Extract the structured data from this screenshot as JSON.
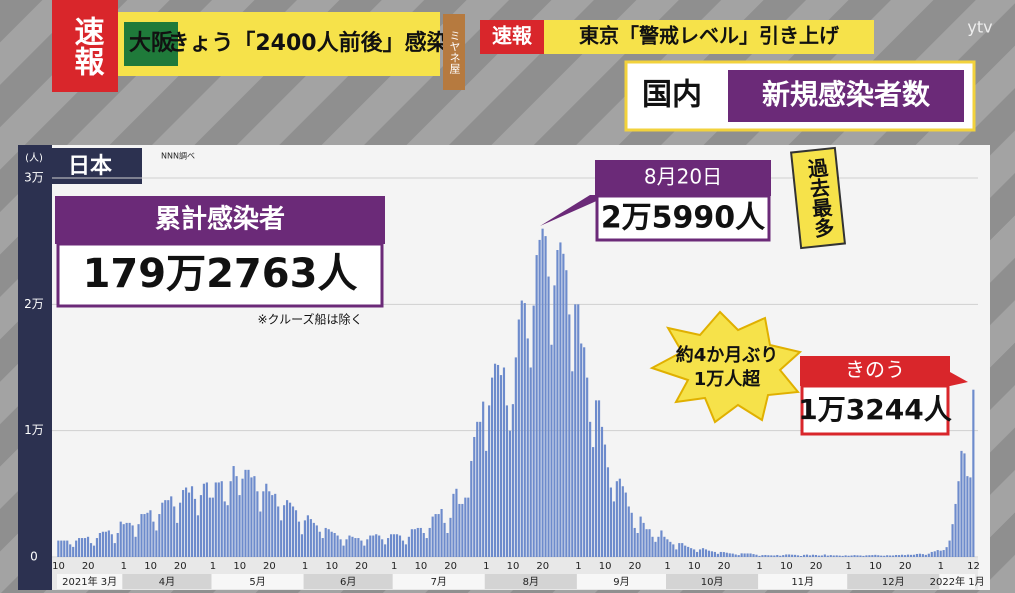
{
  "header": {
    "breaking": "速報",
    "ticker_tag": "大阪",
    "ticker_text": "きょう「2400人前後」感染",
    "program": "ミヤネ屋",
    "flash_tag": "速報",
    "flash_text": "東京「警戒レベル」引き上げ",
    "panel_region": "国内",
    "panel_title": "新規感染者数",
    "watermark": "ytv"
  },
  "chart_data": {
    "type": "bar",
    "region": "日本",
    "source": "NNN調べ",
    "unit": "(人)",
    "color": "#6d8bcc",
    "grid": true,
    "ylim": [
      0,
      30000
    ],
    "yticks": [
      0,
      {
        "value": 10000,
        "label": "1万"
      },
      {
        "value": 20000,
        "label": "2万"
      },
      {
        "value": 30000,
        "label": "3万"
      }
    ],
    "month_labels": [
      "2021年 3月",
      "4月",
      "5月",
      "6月",
      "7月",
      "8月",
      "9月",
      "10月",
      "11月",
      "12月",
      "2022年 1月"
    ],
    "categories": [
      "10",
      null,
      null,
      null,
      null,
      null,
      null,
      null,
      null,
      null,
      "20",
      null,
      null,
      null,
      null,
      null,
      null,
      null,
      null,
      null,
      null,
      null,
      "1",
      null,
      null,
      null,
      null,
      null,
      null,
      null,
      null,
      "10",
      null,
      null,
      null,
      null,
      null,
      null,
      null,
      null,
      null,
      "20",
      null,
      null,
      null,
      null,
      null,
      null,
      null,
      null,
      null,
      null,
      "1",
      null,
      null,
      null,
      null,
      null,
      null,
      null,
      null,
      "10",
      null,
      null,
      null,
      null,
      null,
      null,
      null,
      null,
      null,
      "20",
      null,
      null,
      null,
      null,
      null,
      null,
      null,
      null,
      null,
      null,
      null,
      "1",
      null,
      null,
      null,
      null,
      null,
      null,
      null,
      null,
      "10",
      null,
      null,
      null,
      null,
      null,
      null,
      null,
      null,
      null,
      "20",
      null,
      null,
      null,
      null,
      null,
      null,
      null,
      null,
      null,
      null,
      "1",
      null,
      null,
      null,
      null,
      null,
      null,
      null,
      null,
      "10",
      null,
      null,
      null,
      null,
      null,
      null,
      null,
      null,
      null,
      "20",
      null,
      null,
      null,
      null,
      null,
      null,
      null,
      null,
      null,
      null,
      null,
      "1",
      null,
      null,
      null,
      null,
      null,
      null,
      null,
      null,
      "10",
      null,
      null,
      null,
      null,
      null,
      null,
      null,
      null,
      null,
      "20",
      null,
      null,
      null,
      null,
      null,
      null,
      null,
      null,
      null,
      null,
      null,
      "1",
      null,
      null,
      null,
      null,
      null,
      null,
      null,
      null,
      "10",
      null,
      null,
      null,
      null,
      null,
      null,
      null,
      null,
      null,
      "20",
      null,
      null,
      null,
      null,
      null,
      null,
      null,
      null,
      null,
      null,
      "1",
      null,
      null,
      null,
      null,
      null,
      null,
      null,
      null,
      "10",
      null,
      null,
      null,
      null,
      null,
      null,
      null,
      null,
      null,
      "20",
      null,
      null,
      null,
      null,
      null,
      null,
      null,
      null,
      null,
      null,
      null,
      "1",
      null,
      null,
      null,
      null,
      null,
      null,
      null,
      null,
      "10",
      null,
      null,
      null,
      null,
      null,
      null,
      null,
      null,
      null,
      "20",
      null,
      null,
      null,
      null,
      null,
      null,
      null,
      null,
      null,
      null,
      "1",
      null,
      null,
      null,
      null,
      null,
      null,
      null,
      null,
      "10",
      null,
      null,
      null,
      null,
      null,
      null,
      null,
      null,
      null,
      "20",
      null,
      null,
      null,
      null,
      null,
      null,
      null,
      null,
      null,
      null,
      null,
      "1",
      null,
      null,
      null,
      null,
      null,
      null,
      null,
      null,
      null,
      null,
      "12"
    ],
    "values": [
      1300,
      1300,
      1300,
      1300,
      1000,
      800,
      1300,
      1500,
      1500,
      1500,
      1600,
      1100,
      900,
      1500,
      1900,
      2000,
      2000,
      2100,
      1800,
      1100,
      1900,
      2800,
      2600,
      2700,
      2700,
      2500,
      1600,
      2600,
      3400,
      3400,
      3500,
      3700,
      2800,
      2100,
      3400,
      4300,
      4500,
      4500,
      4800,
      4000,
      2700,
      4300,
      5300,
      5500,
      5100,
      5600,
      4600,
      3300,
      4900,
      5800,
      5900,
      4700,
      4700,
      5900,
      5900,
      6000,
      4400,
      4100,
      6000,
      7200,
      6400,
      4900,
      6200,
      6900,
      6900,
      6300,
      6400,
      5200,
      3600,
      5200,
      5800,
      5200,
      4900,
      5000,
      4000,
      2900,
      4100,
      4500,
      4300,
      4000,
      3700,
      2800,
      1800,
      2900,
      3300,
      3000,
      2700,
      2500,
      2000,
      1500,
      2300,
      2200,
      2000,
      1900,
      1700,
      1400,
      900,
      1400,
      1700,
      1600,
      1500,
      1500,
      1300,
      900,
      1400,
      1700,
      1700,
      1800,
      1700,
      1400,
      1000,
      1500,
      1800,
      1800,
      1800,
      1700,
      1300,
      1000,
      1600,
      2200,
      2200,
      2300,
      2300,
      1900,
      1500,
      2300,
      3200,
      3400,
      3400,
      3800,
      2700,
      1900,
      3100,
      5000,
      5400,
      4200,
      4200,
      4700,
      4700,
      7600,
      9500,
      10700,
      10700,
      12300,
      8400,
      12000,
      14200,
      15300,
      15200,
      14400,
      15000,
      12000,
      10000,
      12100,
      15800,
      18800,
      20300,
      20100,
      17300,
      15000,
      19900,
      23900,
      25100,
      25990,
      25400,
      22200,
      16800,
      21500,
      24300,
      24900,
      24000,
      22700,
      19200,
      14700,
      20000,
      20000,
      16900,
      16600,
      14200,
      10700,
      8700,
      12400,
      12400,
      10300,
      8900,
      7100,
      5500,
      4400,
      6000,
      6200,
      5600,
      5100,
      4000,
      3500,
      2300,
      1900,
      3200,
      2700,
      2200,
      2200,
      1600,
      1200,
      1600,
      2100,
      1600,
      1400,
      1200,
      1000,
      600,
      1100,
      1100,
      900,
      800,
      700,
      600,
      400,
      600,
      700,
      600,
      500,
      450,
      400,
      250,
      400,
      390,
      340,
      290,
      270,
      200,
      150,
      290,
      280,
      280,
      280,
      230,
      180,
      90,
      150,
      160,
      140,
      130,
      120,
      160,
      100,
      150,
      200,
      200,
      180,
      170,
      130,
      80,
      170,
      190,
      130,
      180,
      160,
      110,
      120,
      200,
      110,
      150,
      120,
      130,
      110,
      90,
      130,
      100,
      120,
      150,
      130,
      120,
      90,
      130,
      140,
      150,
      170,
      140,
      110,
      100,
      140,
      120,
      120,
      160,
      150,
      180,
      150,
      190,
      170,
      180,
      240,
      260,
      230,
      170,
      260,
      400,
      450,
      550,
      500,
      550,
      780,
      1300,
      2600,
      4200,
      6000,
      8400,
      8200,
      6400,
      6300,
      13244
    ],
    "cumulative_title": "累計感染者",
    "cumulative_value": "179万2763人",
    "cumulative_note": "※クルーズ船は除く",
    "peak_date": "8月20日",
    "peak_value": "2万5990人",
    "peak_badge": "過去最多",
    "burst_lines": [
      "約4か月ぶり",
      "1万人超"
    ],
    "latest_title": "きのう",
    "latest_value": "1万3244人"
  }
}
